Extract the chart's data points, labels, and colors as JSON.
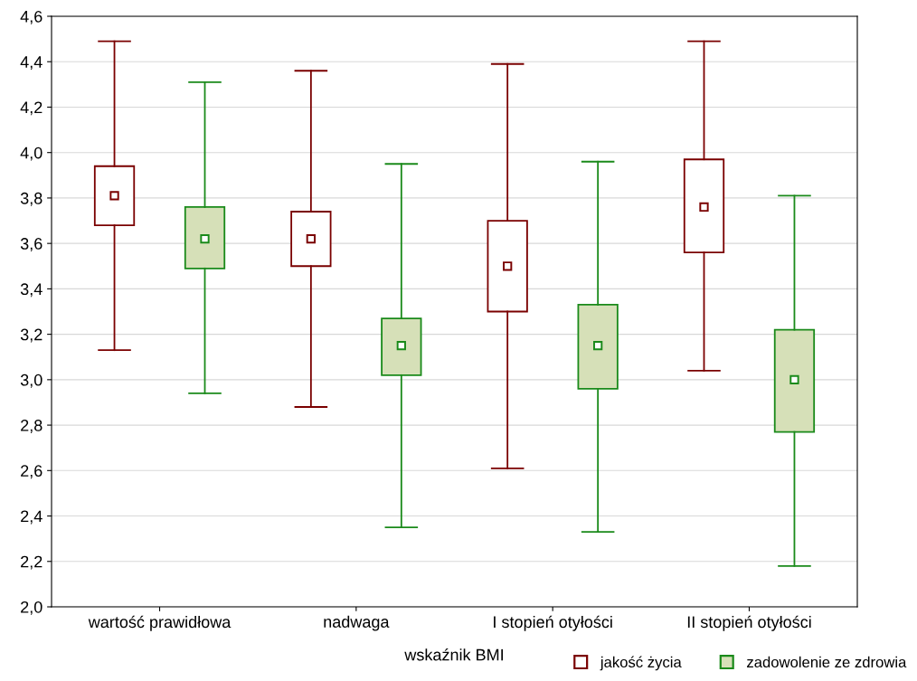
{
  "chart_data": {
    "type": "box",
    "xlabel": "wskaźnik BMI",
    "categories": [
      "wartość prawidłowa",
      "nadwaga",
      "I stopień otyłości",
      "II stopień otyłości"
    ],
    "ylim": [
      2.0,
      4.6
    ],
    "yticks": [
      {
        "value": 2.0,
        "label": "2,0"
      },
      {
        "value": 2.2,
        "label": "2,2"
      },
      {
        "value": 2.4,
        "label": "2,4"
      },
      {
        "value": 2.6,
        "label": "2,6"
      },
      {
        "value": 2.8,
        "label": "2,8"
      },
      {
        "value": 3.0,
        "label": "3,0"
      },
      {
        "value": 3.2,
        "label": "3,2"
      },
      {
        "value": 3.4,
        "label": "3,4"
      },
      {
        "value": 3.6,
        "label": "3,6"
      },
      {
        "value": 3.8,
        "label": "3,8"
      },
      {
        "value": 4.0,
        "label": "4,0"
      },
      {
        "value": 4.2,
        "label": "4,2"
      },
      {
        "value": 4.4,
        "label": "4,4"
      },
      {
        "value": 4.6,
        "label": "4,6"
      }
    ],
    "grid": "y",
    "legend": "bottom right",
    "marker": "square",
    "series": [
      {
        "name": "jakość życia",
        "color": "#7a0000",
        "boxes": [
          {
            "low": 3.13,
            "q1": 3.68,
            "median": 3.81,
            "q3": 3.94,
            "high": 4.49
          },
          {
            "low": 2.88,
            "q1": 3.5,
            "median": 3.62,
            "q3": 3.74,
            "high": 4.36
          },
          {
            "low": 2.61,
            "q1": 3.3,
            "median": 3.5,
            "q3": 3.7,
            "high": 4.39
          },
          {
            "low": 3.04,
            "q1": 3.56,
            "median": 3.76,
            "q3": 3.97,
            "high": 4.49
          }
        ]
      },
      {
        "name": "zadowolenie ze zdrowia",
        "color": "#1a8a1a",
        "boxes": [
          {
            "low": 2.94,
            "q1": 3.49,
            "median": 3.62,
            "q3": 3.76,
            "high": 4.31
          },
          {
            "low": 2.35,
            "q1": 3.02,
            "median": 3.15,
            "q3": 3.27,
            "high": 3.95
          },
          {
            "low": 2.33,
            "q1": 2.96,
            "median": 3.15,
            "q3": 3.33,
            "high": 3.96
          },
          {
            "low": 2.18,
            "q1": 2.77,
            "median": 3.0,
            "q3": 3.22,
            "high": 3.81
          }
        ]
      }
    ]
  }
}
